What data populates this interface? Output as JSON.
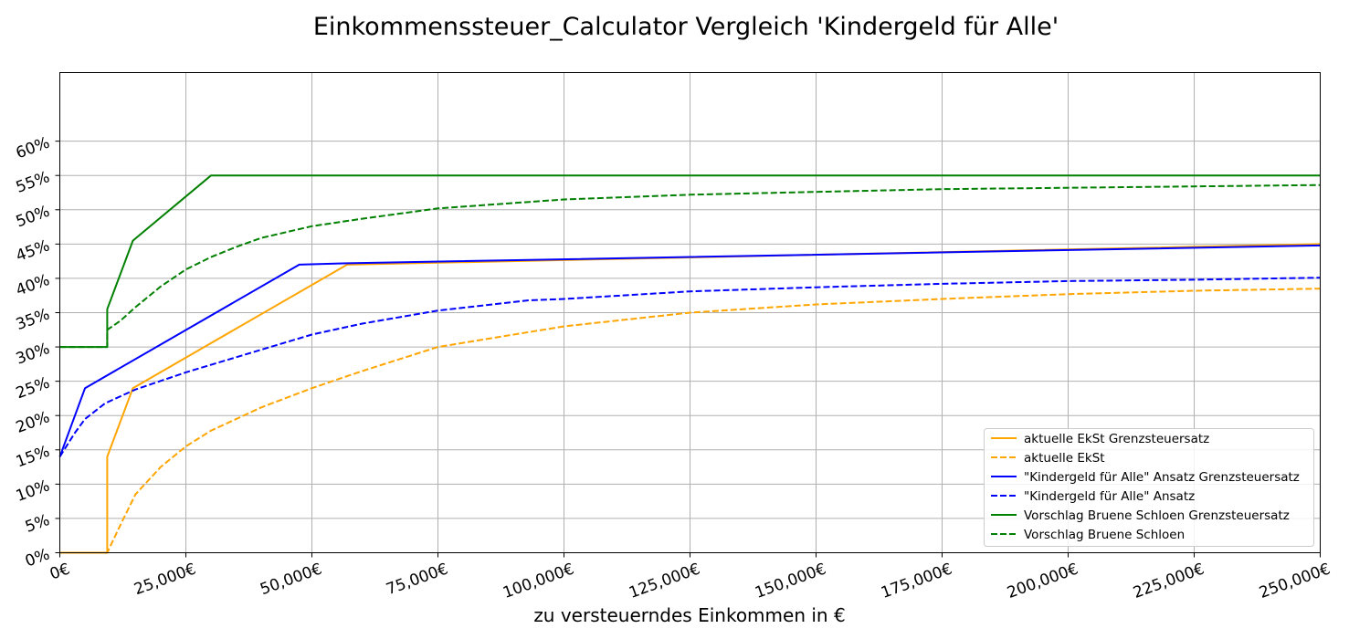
{
  "chart_data": {
    "type": "line",
    "title": "Einkommenssteuer_Calculator Vergleich 'Kindergeld für Alle'",
    "xlabel": "zu versteuerndes Einkommen in €",
    "ylabel": "",
    "xlim": [
      0,
      250000
    ],
    "ylim": [
      0,
      70
    ],
    "x_ticks": [
      0,
      25000,
      50000,
      75000,
      100000,
      125000,
      150000,
      175000,
      200000,
      225000,
      250000
    ],
    "x_tick_labels": [
      "0€",
      "25,000€",
      "50,000€",
      "75,000€",
      "100,000€",
      "125,000€",
      "150,000€",
      "175,000€",
      "200,000€",
      "225,000€",
      "250,000€"
    ],
    "y_ticks": [
      0,
      5,
      10,
      15,
      20,
      25,
      30,
      35,
      40,
      45,
      50,
      55,
      60
    ],
    "y_tick_labels": [
      "0%",
      "5%",
      "10%",
      "15%",
      "20%",
      "25%",
      "30%",
      "35%",
      "40%",
      "45%",
      "50%",
      "55%",
      "60%"
    ],
    "grid": true,
    "legend_position": "lower-right",
    "series": [
      {
        "name": "aktuelle EkSt Grenzsteuersatz",
        "color": "#ffa500",
        "dash": "solid",
        "x": [
          0,
          9400,
          9400,
          14500,
          57000,
          250000
        ],
        "y": [
          0,
          0,
          14,
          24,
          42,
          45
        ]
      },
      {
        "name": "aktuelle EkSt",
        "color": "#ffa500",
        "dash": "dashed",
        "x": [
          0,
          9400,
          12000,
          15000,
          20000,
          25000,
          30000,
          40000,
          50000,
          60000,
          75000,
          100000,
          125000,
          150000,
          175000,
          200000,
          225000,
          250000
        ],
        "y": [
          0,
          0,
          4,
          8.5,
          12.5,
          15.5,
          17.8,
          21.2,
          24,
          26.5,
          30,
          33,
          35,
          36.2,
          37,
          37.7,
          38.2,
          38.5
        ]
      },
      {
        "name": "\"Kindergeld für Alle\" Ansatz Grenzsteuersatz",
        "color": "#0000ff",
        "dash": "solid",
        "x": [
          0,
          5000,
          47500,
          57000,
          250000
        ],
        "y": [
          14,
          24,
          42,
          42.2,
          44.8
        ]
      },
      {
        "name": "\"Kindergeld für Alle\" Ansatz",
        "color": "#0000ff",
        "dash": "dashed",
        "x": [
          0,
          3000,
          5000,
          9000,
          15000,
          25000,
          35000,
          50000,
          60000,
          75000,
          93000,
          100000,
          125000,
          150000,
          175000,
          200000,
          225000,
          250000
        ],
        "y": [
          14,
          17.5,
          19.5,
          21.8,
          23.8,
          26.3,
          28.5,
          31.8,
          33.4,
          35.3,
          36.8,
          37,
          38.1,
          38.7,
          39.2,
          39.6,
          39.8,
          40.1
        ]
      },
      {
        "name": "Vorschlag Bruene Schloen Grenzsteuersatz",
        "color": "#008000",
        "dash": "solid",
        "x": [
          0,
          9400,
          9400,
          14500,
          30000,
          250000
        ],
        "y": [
          30,
          30,
          35.5,
          45.5,
          55,
          55
        ]
      },
      {
        "name": "Vorschlag Bruene Schloen",
        "color": "#008000",
        "dash": "dashed",
        "x": [
          0,
          9400,
          9400,
          12000,
          15000,
          20000,
          25000,
          30000,
          35000,
          40000,
          50000,
          60000,
          75000,
          100000,
          125000,
          150000,
          175000,
          200000,
          225000,
          250000
        ],
        "y": [
          30,
          30,
          32.5,
          33.8,
          35.8,
          38.8,
          41.3,
          43.1,
          44.6,
          45.9,
          47.6,
          48.7,
          50.2,
          51.5,
          52.2,
          52.6,
          53,
          53.2,
          53.4,
          53.6
        ]
      }
    ]
  }
}
